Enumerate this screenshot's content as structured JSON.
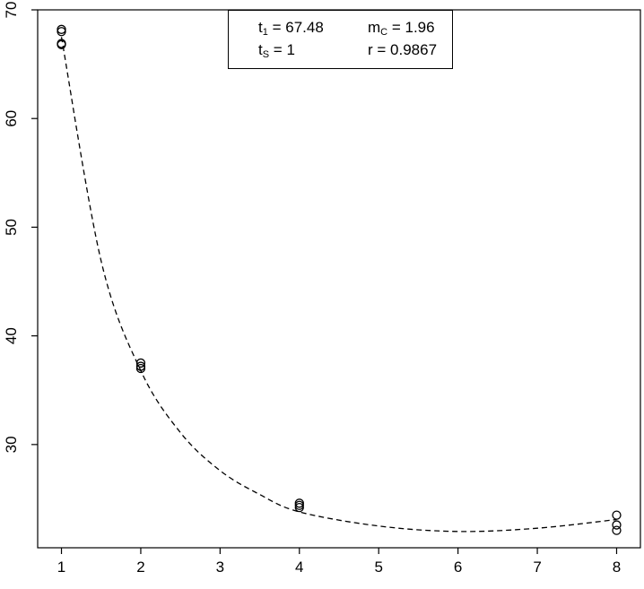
{
  "chart_data": {
    "type": "scatter",
    "title": "",
    "xlabel": "",
    "ylabel": "",
    "xlim": [
      0.7,
      8.3
    ],
    "ylim": [
      20.5,
      70
    ],
    "x_ticks": [
      1,
      2,
      3,
      4,
      5,
      6,
      7,
      8
    ],
    "y_ticks": [
      30,
      40,
      50,
      60,
      70
    ],
    "grid": false,
    "points": [
      {
        "x": 1,
        "y": 68.2
      },
      {
        "x": 1,
        "y": 68.0
      },
      {
        "x": 1,
        "y": 66.8
      },
      {
        "x": 1,
        "y": 66.9
      },
      {
        "x": 2,
        "y": 37.5
      },
      {
        "x": 2,
        "y": 37.0
      },
      {
        "x": 2,
        "y": 37.2
      },
      {
        "x": 4,
        "y": 24.6
      },
      {
        "x": 4,
        "y": 24.2
      },
      {
        "x": 4,
        "y": 24.4
      },
      {
        "x": 8,
        "y": 23.5
      },
      {
        "x": 8,
        "y": 22.6
      },
      {
        "x": 8,
        "y": 22.1
      }
    ],
    "fit_curve": {
      "style": "dashed",
      "points": [
        {
          "x": 1,
          "y": 67.5
        },
        {
          "x": 1.5,
          "y": 46.9
        },
        {
          "x": 2,
          "y": 36.8
        },
        {
          "x": 2.5,
          "y": 31.1
        },
        {
          "x": 3,
          "y": 27.6
        },
        {
          "x": 3.5,
          "y": 25.4
        },
        {
          "x": 4,
          "y": 23.8
        },
        {
          "x": 5,
          "y": 22.5
        },
        {
          "x": 6,
          "y": 22.0
        },
        {
          "x": 7,
          "y": 22.3
        },
        {
          "x": 8,
          "y": 23.1
        }
      ]
    },
    "legend": {
      "placement": "top-center",
      "t1": {
        "prefix": "t",
        "sub": "1",
        "rest": " = 67.48"
      },
      "ts": {
        "prefix": "t",
        "sub": "S",
        "rest": " = 1"
      },
      "mc": {
        "prefix": "m",
        "sub": "C",
        "rest": " = 1.96"
      },
      "r": {
        "text": "r = 0.9867"
      }
    }
  }
}
